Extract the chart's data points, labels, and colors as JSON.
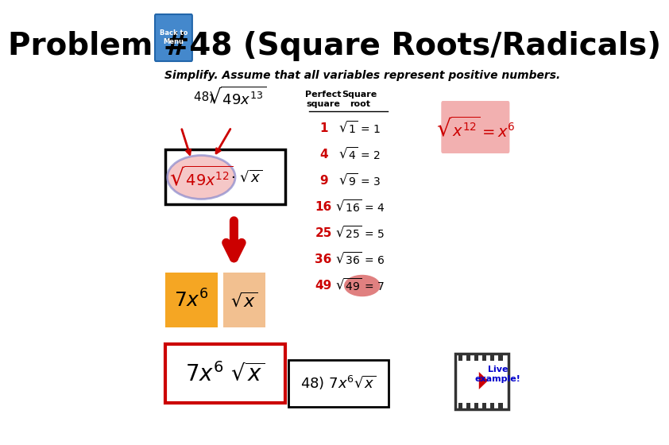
{
  "title": "Problem #48 (Square Roots/Radicals)",
  "title_fontsize": 28,
  "title_color": "#000000",
  "bg_color": "#ffffff",
  "subtitle": "Simplify. Assume that all variables represent positive numbers.",
  "problem_label": "48) ",
  "problem_expr": "\\sqrt{49x^{13}}",
  "step1_expr": "\\sqrt{49x^{12}} \\cdot \\sqrt{x}",
  "step2a_expr": "7x^6",
  "step2b_expr": "\\sqrt{x}",
  "step3_expr": "7x^6\\sqrt{x}",
  "answer_expr": "48)\\ 7x^6\\sqrt{x}",
  "key_rule_expr": "\\sqrt{x^{12}} = x^6",
  "table_header_col1": "Perfect\nsquare",
  "table_header_col2": "Square\nroot",
  "table_data": [
    [
      "1",
      "\\sqrt{1} = 1"
    ],
    [
      "4",
      "\\sqrt{4} = 2"
    ],
    [
      "9",
      "\\sqrt{9} = 3"
    ],
    [
      "16",
      "\\sqrt{16} = 4"
    ],
    [
      "25",
      "\\sqrt{25} = 5"
    ],
    [
      "36",
      "\\sqrt{36} = 6"
    ],
    [
      "49",
      "\\sqrt{49} = 7"
    ]
  ],
  "red_color": "#cc0000",
  "dark_red": "#aa0000",
  "orange_bg": "#f5a623",
  "light_orange": "#f2c090",
  "pink_bg": "#f2b0b0",
  "film_border": "#333333",
  "blue_link": "#0000cc",
  "highlight_49_bg": "#e08080",
  "arrow_color": "#cc0000",
  "step1_box_bg": "#ffffff",
  "step1_circle_color": "#8888cc",
  "step3_box_border": "#cc0000"
}
